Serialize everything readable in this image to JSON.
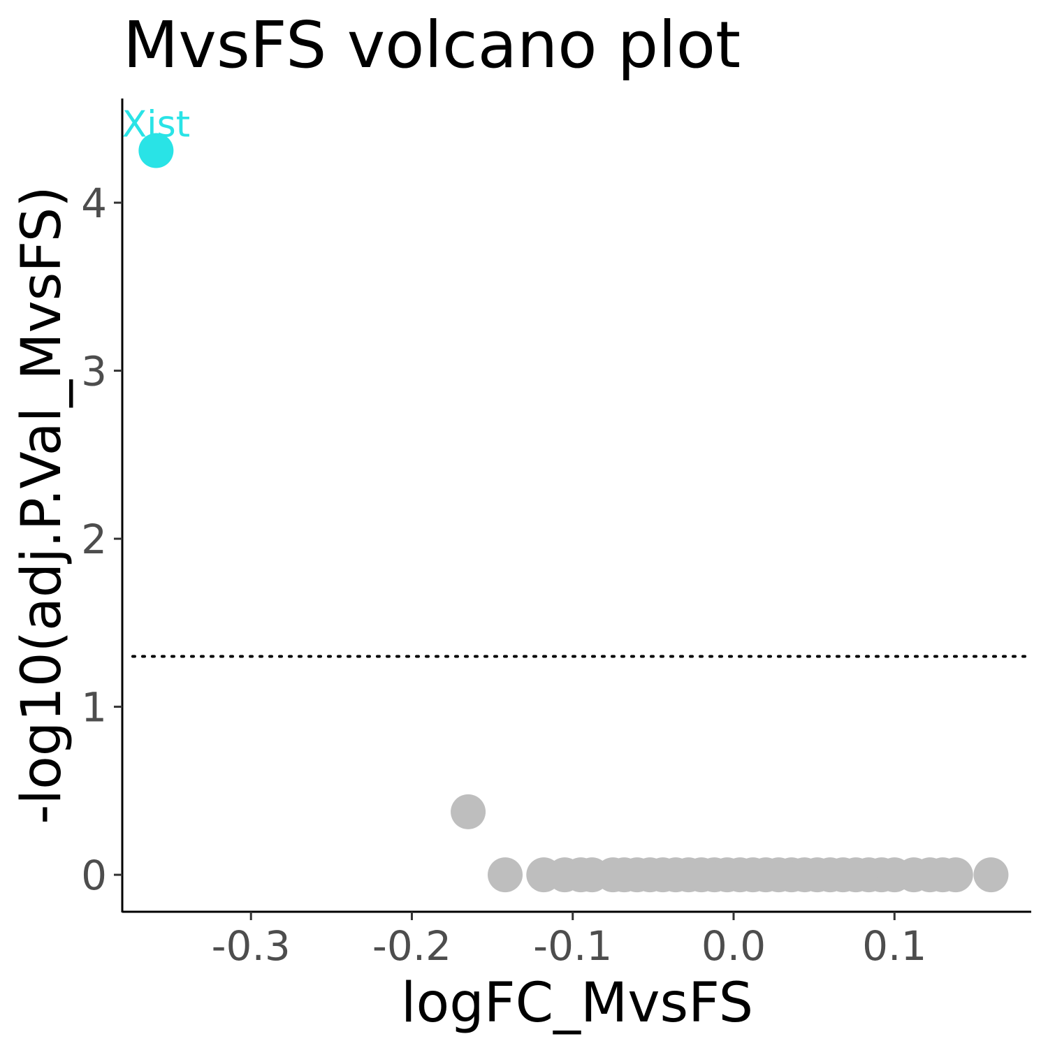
{
  "chart_data": {
    "type": "scatter",
    "title": "MvsFS volcano plot",
    "xlabel": "logFC_MvsFS",
    "ylabel": "-log10(adj.P.Val_MvsFS)",
    "xlim": [
      -0.38,
      0.185
    ],
    "ylim": [
      -0.22,
      4.62
    ],
    "x_ticks": [
      -0.3,
      -0.2,
      -0.1,
      0.0,
      0.1
    ],
    "x_tick_labels": [
      "-0.3",
      "-0.2",
      "-0.1",
      "0.0",
      "0.1"
    ],
    "y_ticks": [
      0,
      1,
      2,
      3,
      4
    ],
    "y_tick_labels": [
      "0",
      "1",
      "2",
      "3",
      "4"
    ],
    "threshold_line": {
      "y": 1.3,
      "style": "dotted",
      "color": "#000000"
    },
    "grid": false,
    "colors": {
      "significant": "#29E3E6",
      "not_significant": "#BEBEBE"
    },
    "points": [
      {
        "x": -0.165,
        "y": 0.375,
        "group": "not_significant"
      },
      {
        "x": -0.142,
        "y": 0.0,
        "group": "not_significant"
      },
      {
        "x": -0.118,
        "y": 0.0,
        "group": "not_significant"
      },
      {
        "x": -0.105,
        "y": 0.0,
        "group": "not_significant"
      },
      {
        "x": -0.095,
        "y": 0.0,
        "group": "not_significant"
      },
      {
        "x": -0.088,
        "y": 0.0,
        "group": "not_significant"
      },
      {
        "x": -0.075,
        "y": 0.0,
        "group": "not_significant"
      },
      {
        "x": -0.068,
        "y": 0.0,
        "group": "not_significant"
      },
      {
        "x": -0.06,
        "y": 0.0,
        "group": "not_significant"
      },
      {
        "x": -0.052,
        "y": 0.0,
        "group": "not_significant"
      },
      {
        "x": -0.044,
        "y": 0.0,
        "group": "not_significant"
      },
      {
        "x": -0.036,
        "y": 0.0,
        "group": "not_significant"
      },
      {
        "x": -0.028,
        "y": 0.0,
        "group": "not_significant"
      },
      {
        "x": -0.02,
        "y": 0.0,
        "group": "not_significant"
      },
      {
        "x": -0.012,
        "y": 0.0,
        "group": "not_significant"
      },
      {
        "x": -0.004,
        "y": 0.0,
        "group": "not_significant"
      },
      {
        "x": 0.004,
        "y": 0.0,
        "group": "not_significant"
      },
      {
        "x": 0.012,
        "y": 0.0,
        "group": "not_significant"
      },
      {
        "x": 0.02,
        "y": 0.0,
        "group": "not_significant"
      },
      {
        "x": 0.028,
        "y": 0.0,
        "group": "not_significant"
      },
      {
        "x": 0.036,
        "y": 0.0,
        "group": "not_significant"
      },
      {
        "x": 0.044,
        "y": 0.0,
        "group": "not_significant"
      },
      {
        "x": 0.052,
        "y": 0.0,
        "group": "not_significant"
      },
      {
        "x": 0.06,
        "y": 0.0,
        "group": "not_significant"
      },
      {
        "x": 0.068,
        "y": 0.0,
        "group": "not_significant"
      },
      {
        "x": 0.076,
        "y": 0.0,
        "group": "not_significant"
      },
      {
        "x": 0.084,
        "y": 0.0,
        "group": "not_significant"
      },
      {
        "x": 0.092,
        "y": 0.0,
        "group": "not_significant"
      },
      {
        "x": 0.1,
        "y": 0.0,
        "group": "not_significant"
      },
      {
        "x": 0.112,
        "y": 0.0,
        "group": "not_significant"
      },
      {
        "x": 0.122,
        "y": 0.0,
        "group": "not_significant"
      },
      {
        "x": 0.13,
        "y": 0.0,
        "group": "not_significant"
      },
      {
        "x": 0.138,
        "y": 0.0,
        "group": "not_significant"
      },
      {
        "x": 0.16,
        "y": 0.0,
        "group": "not_significant"
      },
      {
        "x": -0.359,
        "y": 4.31,
        "group": "significant",
        "label": "Xist"
      }
    ]
  }
}
